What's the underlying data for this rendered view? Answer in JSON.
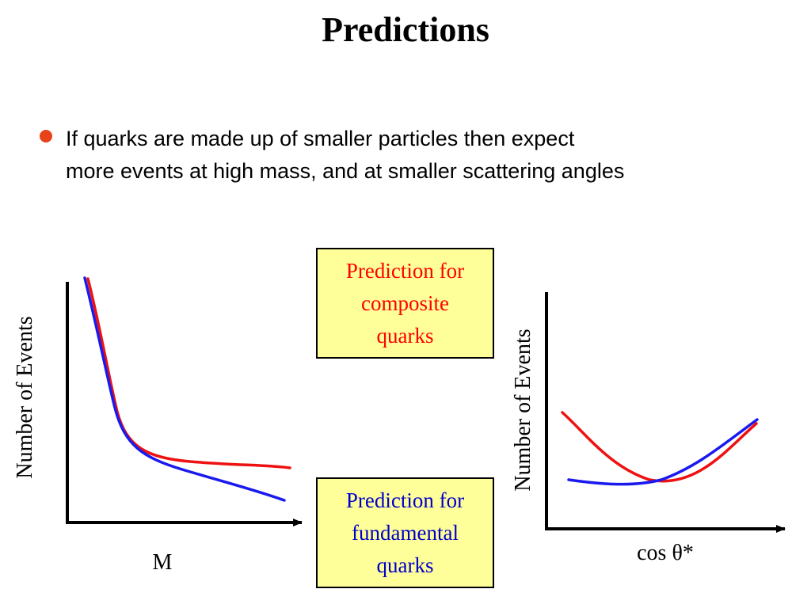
{
  "slide": {
    "title": "Predictions",
    "bullet": {
      "line1": "If quarks are made up of smaller particles then expect",
      "line2": "more events at high mass, and at smaller scattering angles",
      "bullet_color": "#e8421a"
    }
  },
  "legend_boxes": {
    "composite": {
      "line1": "Prediction for",
      "line2": "composite",
      "line3": "quarks",
      "color": "#ff0000"
    },
    "fundamental": {
      "line1": "Prediction for",
      "line2": "fundamental",
      "line3": "quarks",
      "color": "#0000cc"
    },
    "box_fill": "#ffff99"
  },
  "plots": {
    "left": {
      "ylabel": "Number of Events",
      "xlabel": "M"
    },
    "right": {
      "ylabel": "Number of Events",
      "xlabel": "cos θ*"
    }
  }
}
